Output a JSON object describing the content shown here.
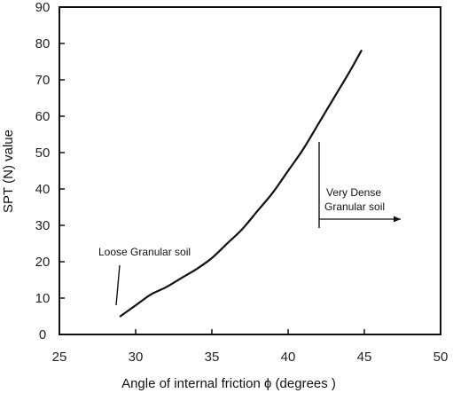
{
  "chart_data": {
    "type": "line",
    "title": "",
    "xlabel": "Angle of internal friction ϕ   (degrees )",
    "ylabel": "SPT (N) value",
    "xlim": [
      25,
      50
    ],
    "ylim": [
      0,
      90
    ],
    "xticks": [
      25,
      30,
      35,
      40,
      45,
      50
    ],
    "yticks": [
      0,
      10,
      20,
      30,
      40,
      50,
      60,
      70,
      80,
      90
    ],
    "grid": false,
    "series": [
      {
        "x": [
          29.0,
          30.0,
          31.0,
          32.0,
          33.0,
          34.0,
          35.0,
          36.0,
          37.0,
          38.0,
          39.0,
          40.0,
          41.0,
          42.0,
          43.0,
          44.0,
          44.8
        ],
        "y": [
          5,
          8,
          11,
          13,
          15.5,
          18,
          21,
          25,
          29,
          34,
          39,
          45,
          51,
          58,
          65,
          72,
          78
        ]
      }
    ],
    "annotations": [
      {
        "name": "loose",
        "lines": [
          "Loose Granular soil"
        ]
      },
      {
        "name": "dense",
        "lines": [
          "Very Dense",
          "Granular soil"
        ]
      }
    ],
    "colors": {
      "line": "#111111",
      "axis": "#111111",
      "text": "#222222"
    }
  }
}
